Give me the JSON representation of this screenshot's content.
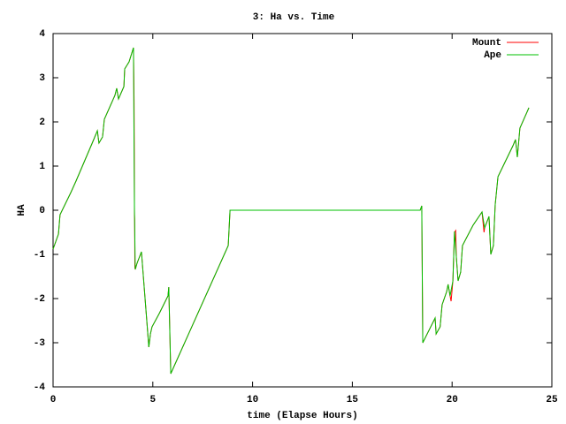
{
  "chart_data": {
    "type": "line",
    "title": "3: Ha vs. Time",
    "x_label": "time (Elapse Hours)",
    "y_label": "HA",
    "xlim": [
      0,
      25
    ],
    "xticks": [
      0,
      5,
      10,
      15,
      20,
      25
    ],
    "ylim": [
      -4,
      4
    ],
    "yticks": [
      -4,
      -3,
      -2,
      -1,
      0,
      1,
      2,
      3,
      4
    ],
    "legend": "top-right",
    "series": [
      {
        "name": "Mount",
        "color": "#ff0000",
        "x": [
          0,
          0.27,
          0.35,
          0.89,
          1.15,
          2.0,
          2.22,
          2.3,
          2.48,
          2.57,
          3.1,
          3.19,
          3.28,
          3.55,
          3.59,
          3.81,
          4.03,
          4.05,
          4.06,
          4.07,
          4.08,
          4.09,
          4.1,
          4.12,
          4.21,
          4.43,
          4.8,
          4.88,
          4.96,
          5.32,
          5.76,
          5.8,
          5.9,
          8.78,
          8.87,
          18.4,
          18.48,
          18.53,
          19.15,
          19.2,
          19.4,
          19.5,
          19.73,
          19.8,
          19.9,
          19.95,
          20.04,
          20.12,
          20.18,
          20.21,
          20.3,
          20.43,
          20.52,
          21.05,
          21.5,
          21.6,
          21.63,
          21.85,
          21.94,
          22.07,
          22.16,
          22.3,
          22.6,
          23.05,
          23.18,
          23.27,
          23.4,
          23.85
        ],
        "values": [
          -0.88,
          -0.54,
          -0.1,
          0.4,
          0.66,
          1.56,
          1.8,
          1.52,
          1.66,
          2.06,
          2.6,
          2.76,
          2.52,
          2.8,
          3.2,
          3.36,
          3.68,
          2.9,
          2.44,
          1.36,
          -0.1,
          -0.2,
          -1.3,
          -1.34,
          -1.2,
          -0.94,
          -3.1,
          -2.8,
          -2.64,
          -2.34,
          -1.94,
          -1.74,
          -3.7,
          -0.8,
          0,
          0,
          0.1,
          -3.0,
          -2.44,
          -2.8,
          -2.64,
          -2.14,
          -1.84,
          -1.68,
          -1.94,
          -2.06,
          -1.6,
          -0.5,
          -0.46,
          -1.04,
          -1.6,
          -1.4,
          -0.8,
          -0.34,
          -0.04,
          -0.5,
          -0.4,
          -0.14,
          -1.0,
          -0.8,
          0.12,
          0.76,
          1.04,
          1.46,
          1.6,
          1.2,
          1.86,
          2.32
        ]
      },
      {
        "name": "Ape",
        "color": "#00c000",
        "x": [
          0,
          0.27,
          0.35,
          0.89,
          1.15,
          2.0,
          2.22,
          2.3,
          2.48,
          2.57,
          3.1,
          3.19,
          3.28,
          3.55,
          3.59,
          3.81,
          4.03,
          4.08,
          4.12,
          4.21,
          4.43,
          4.8,
          4.88,
          4.96,
          5.32,
          5.76,
          5.8,
          5.9,
          8.78,
          8.87,
          18.4,
          18.48,
          18.53,
          19.15,
          19.2,
          19.4,
          19.5,
          19.73,
          19.8,
          19.9,
          20.04,
          20.12,
          20.21,
          20.3,
          20.43,
          20.52,
          21.05,
          21.5,
          21.63,
          21.85,
          21.94,
          22.07,
          22.16,
          22.3,
          22.6,
          23.05,
          23.18,
          23.27,
          23.4,
          23.85
        ],
        "values": [
          -0.88,
          -0.54,
          -0.1,
          0.4,
          0.66,
          1.56,
          1.8,
          1.52,
          1.66,
          2.06,
          2.6,
          2.76,
          2.52,
          2.8,
          3.2,
          3.36,
          3.68,
          0,
          -1.34,
          -1.2,
          -0.94,
          -3.1,
          -2.8,
          -2.64,
          -2.34,
          -1.94,
          -1.74,
          -3.7,
          -0.8,
          0,
          0,
          0.1,
          -3.0,
          -2.44,
          -2.8,
          -2.64,
          -2.14,
          -1.84,
          -1.68,
          -1.94,
          -1.6,
          -0.48,
          -1.04,
          -1.6,
          -1.4,
          -0.8,
          -0.34,
          -0.04,
          -0.4,
          -0.14,
          -1.0,
          -0.8,
          0.12,
          0.76,
          1.04,
          1.46,
          1.6,
          1.2,
          1.86,
          2.32
        ]
      }
    ]
  }
}
